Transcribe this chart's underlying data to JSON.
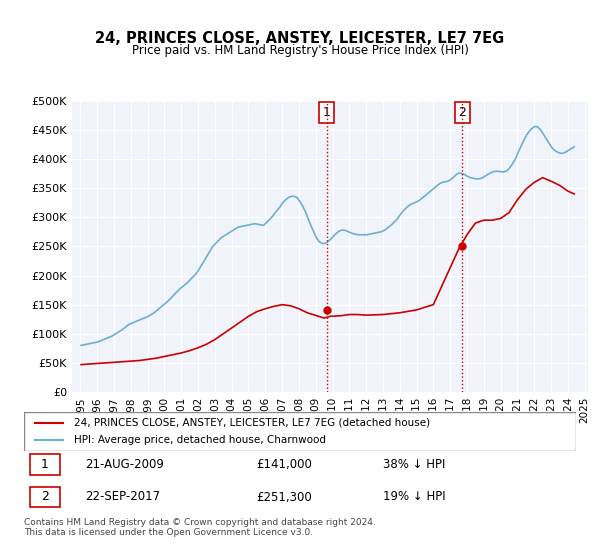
{
  "title": "24, PRINCES CLOSE, ANSTEY, LEICESTER, LE7 7EG",
  "subtitle": "Price paid vs. HM Land Registry's House Price Index (HPI)",
  "legend_line1": "24, PRINCES CLOSE, ANSTEY, LEICESTER, LE7 7EG (detached house)",
  "legend_line2": "HPI: Average price, detached house, Charnwood",
  "footer": "Contains HM Land Registry data © Crown copyright and database right 2024.\nThis data is licensed under the Open Government Licence v3.0.",
  "annotation1": {
    "num": "1",
    "date": "21-AUG-2009",
    "price": "£141,000",
    "pct": "38% ↓ HPI"
  },
  "annotation2": {
    "num": "2",
    "date": "22-SEP-2017",
    "price": "£251,300",
    "pct": "19% ↓ HPI"
  },
  "hpi_color": "#6baed6",
  "price_color": "#cc0000",
  "vline_color": "#cc0000",
  "background_color": "#f0f4fa",
  "plot_bg": "#f0f4fa",
  "ylim": [
    0,
    500000
  ],
  "yticks": [
    0,
    50000,
    100000,
    150000,
    200000,
    250000,
    300000,
    350000,
    400000,
    450000,
    500000
  ],
  "ytick_labels": [
    "£0",
    "£50K",
    "£100K",
    "£150K",
    "£200K",
    "£250K",
    "£300K",
    "£350K",
    "£400K",
    "£450K",
    "£500K"
  ],
  "hpi_x": [
    1995.04,
    1995.21,
    1995.38,
    1995.54,
    1995.71,
    1995.88,
    1996.04,
    1996.21,
    1996.38,
    1996.54,
    1996.71,
    1996.88,
    1997.04,
    1997.21,
    1997.38,
    1997.54,
    1997.71,
    1997.88,
    1998.04,
    1998.21,
    1998.38,
    1998.54,
    1998.71,
    1998.88,
    1999.04,
    1999.21,
    1999.38,
    1999.54,
    1999.71,
    1999.88,
    2000.04,
    2000.21,
    2000.38,
    2000.54,
    2000.71,
    2000.88,
    2001.04,
    2001.21,
    2001.38,
    2001.54,
    2001.71,
    2001.88,
    2002.04,
    2002.21,
    2002.38,
    2002.54,
    2002.71,
    2002.88,
    2003.04,
    2003.21,
    2003.38,
    2003.54,
    2003.71,
    2003.88,
    2004.04,
    2004.21,
    2004.38,
    2004.54,
    2004.71,
    2004.88,
    2005.04,
    2005.21,
    2005.38,
    2005.54,
    2005.71,
    2005.88,
    2006.04,
    2006.21,
    2006.38,
    2006.54,
    2006.71,
    2006.88,
    2007.04,
    2007.21,
    2007.38,
    2007.54,
    2007.71,
    2007.88,
    2008.04,
    2008.21,
    2008.38,
    2008.54,
    2008.71,
    2008.88,
    2009.04,
    2009.21,
    2009.38,
    2009.54,
    2009.71,
    2009.88,
    2010.04,
    2010.21,
    2010.38,
    2010.54,
    2010.71,
    2010.88,
    2011.04,
    2011.21,
    2011.38,
    2011.54,
    2011.71,
    2011.88,
    2012.04,
    2012.21,
    2012.38,
    2012.54,
    2012.71,
    2012.88,
    2013.04,
    2013.21,
    2013.38,
    2013.54,
    2013.71,
    2013.88,
    2014.04,
    2014.21,
    2014.38,
    2014.54,
    2014.71,
    2014.88,
    2015.04,
    2015.21,
    2015.38,
    2015.54,
    2015.71,
    2015.88,
    2016.04,
    2016.21,
    2016.38,
    2016.54,
    2016.71,
    2016.88,
    2017.04,
    2017.21,
    2017.38,
    2017.54,
    2017.71,
    2017.88,
    2018.04,
    2018.21,
    2018.38,
    2018.54,
    2018.71,
    2018.88,
    2019.04,
    2019.21,
    2019.38,
    2019.54,
    2019.71,
    2019.88,
    2020.04,
    2020.21,
    2020.38,
    2020.54,
    2020.71,
    2020.88,
    2021.04,
    2021.21,
    2021.38,
    2021.54,
    2021.71,
    2021.88,
    2022.04,
    2022.21,
    2022.38,
    2022.54,
    2022.71,
    2022.88,
    2023.04,
    2023.21,
    2023.38,
    2023.54,
    2023.71,
    2023.88,
    2024.04,
    2024.21,
    2024.38
  ],
  "hpi_y": [
    80000,
    81000,
    82000,
    83000,
    84000,
    85000,
    86000,
    88000,
    90000,
    92000,
    94000,
    96000,
    99000,
    102000,
    105000,
    108000,
    112000,
    116000,
    118000,
    120000,
    122000,
    124000,
    126000,
    128000,
    130000,
    133000,
    136000,
    140000,
    144000,
    148000,
    152000,
    156000,
    161000,
    166000,
    171000,
    176000,
    180000,
    184000,
    188000,
    193000,
    198000,
    203000,
    210000,
    218000,
    226000,
    234000,
    242000,
    250000,
    255000,
    260000,
    265000,
    268000,
    271000,
    274000,
    277000,
    280000,
    283000,
    284000,
    285000,
    286000,
    287000,
    288000,
    289000,
    288000,
    287000,
    286000,
    290000,
    295000,
    300000,
    306000,
    312000,
    318000,
    325000,
    330000,
    334000,
    336000,
    336000,
    334000,
    328000,
    320000,
    310000,
    298000,
    286000,
    275000,
    265000,
    258000,
    255000,
    255000,
    258000,
    262000,
    267000,
    272000,
    276000,
    278000,
    278000,
    276000,
    274000,
    272000,
    271000,
    270000,
    270000,
    270000,
    270000,
    271000,
    272000,
    273000,
    274000,
    275000,
    277000,
    280000,
    284000,
    288000,
    293000,
    298000,
    305000,
    311000,
    316000,
    320000,
    323000,
    325000,
    327000,
    330000,
    334000,
    338000,
    342000,
    346000,
    350000,
    354000,
    358000,
    360000,
    361000,
    362000,
    365000,
    369000,
    374000,
    376000,
    375000,
    373000,
    370000,
    368000,
    367000,
    366000,
    366000,
    367000,
    370000,
    373000,
    376000,
    378000,
    379000,
    379000,
    378000,
    378000,
    380000,
    385000,
    392000,
    400000,
    411000,
    422000,
    432000,
    441000,
    448000,
    453000,
    456000,
    455000,
    450000,
    443000,
    435000,
    427000,
    420000,
    415000,
    412000,
    410000,
    410000,
    412000,
    415000,
    418000,
    421000
  ],
  "price_x": [
    1995.04,
    1995.5,
    1996.0,
    1996.5,
    1997.0,
    1997.5,
    1998.0,
    1998.5,
    1999.0,
    1999.5,
    2000.0,
    2000.5,
    2001.0,
    2001.5,
    2002.0,
    2002.5,
    2003.0,
    2003.5,
    2004.0,
    2004.5,
    2005.0,
    2005.5,
    2006.0,
    2006.5,
    2007.0,
    2007.5,
    2008.0,
    2008.5,
    2009.5,
    2009.88,
    2010.5,
    2011.0,
    2011.5,
    2012.0,
    2013.0,
    2014.0,
    2015.0,
    2016.0,
    2017.5,
    2018.0,
    2018.5,
    2019.0,
    2019.5,
    2020.0,
    2020.5,
    2021.0,
    2021.5,
    2022.0,
    2022.5,
    2023.0,
    2023.5,
    2024.0,
    2024.38
  ],
  "price_y": [
    47000,
    48000,
    49000,
    50000,
    51000,
    52000,
    53000,
    54000,
    56000,
    58000,
    61000,
    64000,
    67000,
    71000,
    76000,
    82000,
    90000,
    100000,
    110000,
    120000,
    130000,
    138000,
    143000,
    147000,
    150000,
    148000,
    143000,
    136000,
    127000,
    130000,
    131000,
    133000,
    133000,
    132000,
    133000,
    136000,
    141000,
    150000,
    245000,
    270000,
    290000,
    295000,
    295000,
    298000,
    308000,
    330000,
    348000,
    360000,
    368000,
    362000,
    355000,
    345000,
    340000
  ],
  "vline1_x": 2009.65,
  "vline2_x": 2017.73,
  "marker1_x": 2009.65,
  "marker1_y": 141000,
  "marker2_x": 2017.73,
  "marker2_y": 251300,
  "xtick_years": [
    1995,
    1996,
    1997,
    1998,
    1999,
    2000,
    2001,
    2002,
    2003,
    2004,
    2005,
    2006,
    2007,
    2008,
    2009,
    2010,
    2011,
    2012,
    2013,
    2014,
    2015,
    2016,
    2017,
    2018,
    2019,
    2020,
    2021,
    2022,
    2023,
    2024,
    2025
  ]
}
